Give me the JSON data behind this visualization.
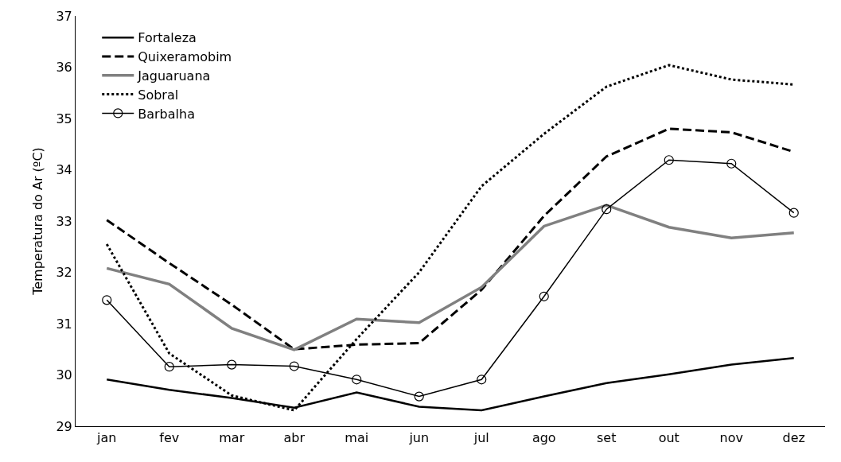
{
  "chart_data": {
    "type": "line",
    "ylabel": "Temperatura do Ar (ºC)",
    "categories": [
      "jan",
      "fev",
      "mar",
      "abr",
      "mai",
      "jun",
      "jul",
      "ago",
      "set",
      "out",
      "nov",
      "dez"
    ],
    "ylim": [
      29,
      37
    ],
    "yticks": [
      29,
      30,
      31,
      32,
      33,
      34,
      35,
      36,
      37
    ],
    "grid": false,
    "legend": "top left",
    "series": [
      {
        "name": "Fortaleza",
        "color": "#000000",
        "line_style": "solid",
        "marker": "none",
        "values": [
          29.91,
          29.71,
          29.55,
          29.36,
          29.66,
          29.38,
          29.31,
          29.58,
          29.84,
          30.01,
          30.2,
          30.33
        ]
      },
      {
        "name": "Quixeramobim",
        "color": "#000000",
        "line_style": "dashed",
        "marker": "none",
        "values": [
          33.02,
          32.18,
          31.37,
          30.5,
          30.59,
          30.62,
          31.66,
          33.1,
          34.26,
          34.8,
          34.73,
          34.35
        ]
      },
      {
        "name": "Jaguaruana",
        "color": "#808080",
        "line_style": "solid",
        "marker": "none",
        "values": [
          32.08,
          31.77,
          30.91,
          30.49,
          31.09,
          31.02,
          31.71,
          32.9,
          33.31,
          32.88,
          32.67,
          32.77
        ]
      },
      {
        "name": "Sobral",
        "color": "#000000",
        "line_style": "dotted",
        "marker": "none",
        "values": [
          32.55,
          30.42,
          29.6,
          29.31,
          30.7,
          32.0,
          33.68,
          34.7,
          35.62,
          36.04,
          35.76,
          35.66
        ]
      },
      {
        "name": "Barbalha",
        "color": "#000000",
        "line_style": "solid",
        "marker": "circle",
        "values": [
          31.46,
          30.16,
          30.2,
          30.17,
          29.91,
          29.58,
          29.91,
          31.53,
          33.23,
          34.19,
          34.12,
          33.16
        ]
      }
    ]
  }
}
